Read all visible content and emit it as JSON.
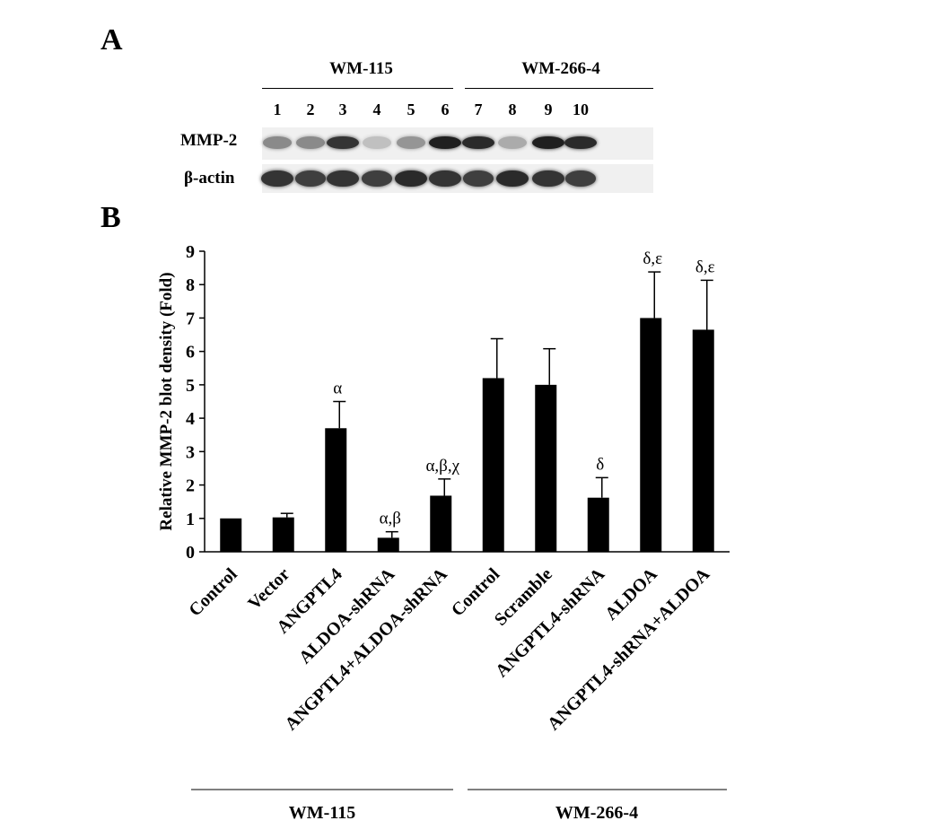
{
  "panel_a": {
    "letter": "A",
    "groups": [
      "WM-115",
      "WM-266-4"
    ],
    "lanes": [
      "1",
      "2",
      "3",
      "4",
      "5",
      "6",
      "7",
      "8",
      "9",
      "10"
    ],
    "rows": [
      {
        "label": "MMP-2",
        "intensity": [
          0.45,
          0.45,
          0.85,
          0.2,
          0.4,
          0.95,
          0.9,
          0.3,
          0.95,
          0.9
        ]
      },
      {
        "label": "β-actin",
        "intensity": [
          0.85,
          0.8,
          0.85,
          0.8,
          0.9,
          0.85,
          0.8,
          0.9,
          0.85,
          0.8
        ]
      }
    ]
  },
  "panel_b": {
    "letter": "B",
    "groups": [
      "WM-115",
      "WM-266-4"
    ]
  },
  "chart_data": {
    "type": "bar",
    "ylabel": "Relative MMP-2 blot density (Fold)",
    "xlabel": "",
    "ylim": [
      0,
      9
    ],
    "yticks": [
      "0",
      "1",
      "2",
      "3",
      "4",
      "5",
      "6",
      "7",
      "8",
      "9"
    ],
    "categories": [
      "Control",
      "Vector",
      "ANGPTL4",
      "ALDOA-shRNA",
      "ANGPTL4+ALDOA-shRNA",
      "Control",
      "Scramble",
      "ANGPTL4-shRNA",
      "ALDOA",
      "ANGPTL4-shRNA+ALDOA"
    ],
    "series": [
      {
        "values": [
          1.0,
          1.03,
          3.7,
          0.42,
          1.68,
          5.2,
          5.0,
          1.62,
          7.0,
          6.65
        ],
        "errors": [
          0.0,
          0.12,
          0.8,
          0.18,
          0.5,
          1.18,
          1.08,
          0.6,
          1.38,
          1.48
        ],
        "annotations": [
          "",
          "",
          "α",
          "α,β",
          "α,β,χ",
          "",
          "",
          "δ",
          "δ,ε",
          "δ,ε"
        ]
      }
    ],
    "bar_color": "#000000",
    "grid": false
  }
}
